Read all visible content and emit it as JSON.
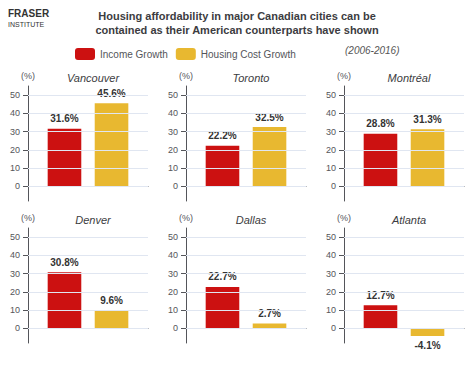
{
  "title": "Housing affordability in major Canadian cities can be\ncontained as their American counterparts have shown",
  "annotations": [
    "FRASER",
    "INSTITUTE",
    "(2006-2016)"
  ],
  "legend": "top",
  "chart_data": [
    {
      "type": "bar",
      "title": "Vancouver",
      "categories": [
        null
      ],
      "ylabel": "(%)",
      "series": [
        {
          "name": "Income Growth",
          "color": "#cc1111",
          "values": [
            31.6
          ],
          "value_labels": [
            "31.6%"
          ]
        },
        {
          "name": "Housing Cost Growth",
          "color": "#e8b830",
          "values": [
            45.6
          ],
          "value_labels": [
            "45.6%"
          ]
        }
      ],
      "ylim": [
        -8,
        55
      ],
      "yticks": [
        0,
        10,
        20,
        30,
        40,
        50
      ],
      "grid": true,
      "data_labels": true,
      "tick_labels": "y"
    },
    {
      "type": "bar",
      "title": "Toronto",
      "categories": [
        null
      ],
      "ylabel": "(%)",
      "series": [
        {
          "name": "Income Growth",
          "color": "#cc1111",
          "values": [
            22.2
          ],
          "value_labels": [
            "22.2%"
          ]
        },
        {
          "name": "Housing Cost Growth",
          "color": "#e8b830",
          "values": [
            32.5
          ],
          "value_labels": [
            "32.5%"
          ]
        }
      ],
      "ylim": [
        -8,
        55
      ],
      "yticks": [
        0,
        10,
        20,
        30,
        40,
        50
      ],
      "grid": true,
      "data_labels": true,
      "tick_labels": "y"
    },
    {
      "type": "bar",
      "title": "Montréal",
      "categories": [
        null
      ],
      "ylabel": "(%)",
      "series": [
        {
          "name": "Income Growth",
          "color": "#cc1111",
          "values": [
            28.8
          ],
          "value_labels": [
            "28.8%"
          ]
        },
        {
          "name": "Housing Cost Growth",
          "color": "#e8b830",
          "values": [
            31.3
          ],
          "value_labels": [
            "31.3%"
          ]
        }
      ],
      "ylim": [
        -8,
        55
      ],
      "yticks": [
        0,
        10,
        20,
        30,
        40,
        50
      ],
      "grid": true,
      "data_labels": true,
      "tick_labels": "y"
    },
    {
      "type": "bar",
      "title": "Denver",
      "categories": [
        null
      ],
      "ylabel": "(%)",
      "series": [
        {
          "name": "Income Growth",
          "color": "#cc1111",
          "values": [
            30.8
          ],
          "value_labels": [
            "30.8%"
          ]
        },
        {
          "name": "Housing Cost Growth",
          "color": "#e8b830",
          "values": [
            9.6
          ],
          "value_labels": [
            "9.6%"
          ]
        }
      ],
      "ylim": [
        -8,
        55
      ],
      "yticks": [
        0,
        10,
        20,
        30,
        40,
        50
      ],
      "grid": true,
      "data_labels": true,
      "tick_labels": "y"
    },
    {
      "type": "bar",
      "title": "Dallas",
      "categories": [
        null
      ],
      "ylabel": "(%)",
      "series": [
        {
          "name": "Income Growth",
          "color": "#cc1111",
          "values": [
            22.7
          ],
          "value_labels": [
            "22.7%"
          ]
        },
        {
          "name": "Housing Cost Growth",
          "color": "#e8b830",
          "values": [
            2.7
          ],
          "value_labels": [
            "2.7%"
          ]
        }
      ],
      "ylim": [
        -8,
        55
      ],
      "yticks": [
        0,
        10,
        20,
        30,
        40,
        50
      ],
      "grid": true,
      "data_labels": true,
      "tick_labels": "y"
    },
    {
      "type": "bar",
      "title": "Atlanta",
      "categories": [
        null
      ],
      "ylabel": "(%)",
      "series": [
        {
          "name": "Income Growth",
          "color": "#cc1111",
          "values": [
            12.7
          ],
          "value_labels": [
            "12.7%"
          ]
        },
        {
          "name": "Housing Cost Growth",
          "color": "#e8b830",
          "values": [
            -4.1
          ],
          "value_labels": [
            "-4.1%"
          ]
        }
      ],
      "ylim": [
        -8,
        55
      ],
      "yticks": [
        0,
        10,
        20,
        30,
        40,
        50
      ],
      "grid": true,
      "data_labels": true,
      "tick_labels": "y"
    }
  ]
}
